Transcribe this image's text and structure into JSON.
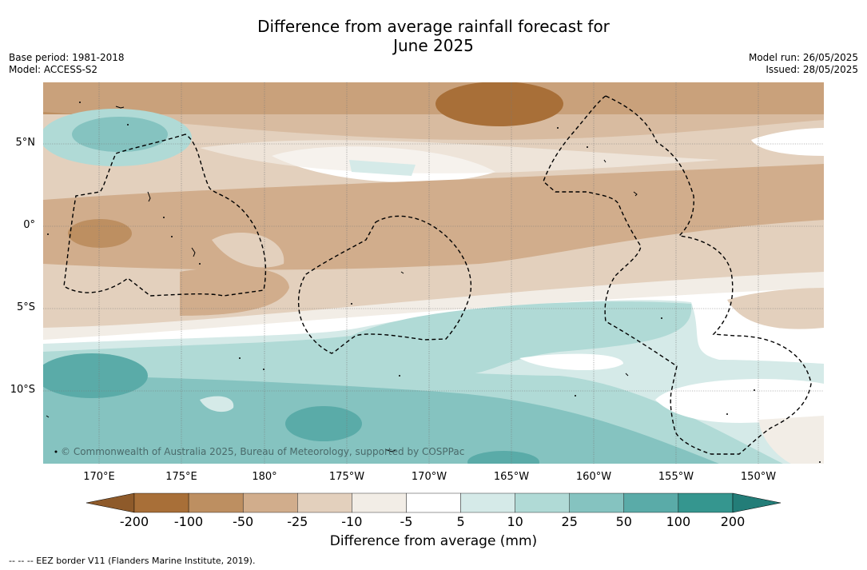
{
  "title": {
    "line1": "Difference from average rainfall forecast for",
    "line2": "June 2025"
  },
  "meta": {
    "base_period": "Base period: 1981-2018",
    "model": "Model: ACCESS-S2",
    "model_run": "Model run: 26/05/2025",
    "issued": "Issued: 28/05/2025"
  },
  "map": {
    "copyright": "© Commonwealth of Australia 2025, Bureau of Meteorology, supported by COSPPac",
    "lat_labels": [
      "5°N",
      "0°",
      "5°S",
      "10°S"
    ],
    "lon_labels": [
      "170°E",
      "175°E",
      "180°",
      "175°W",
      "170°W",
      "165°W",
      "160°W",
      "155°W",
      "150°W"
    ],
    "colors": {
      "n200": "#a86f38",
      "n100": "#bd8f61",
      "n50": "#d1ad8c",
      "n25": "#e3d0bd",
      "n10": "#f2ede6",
      "zero": "#ffffff",
      "p5": "#d5eae8",
      "p10": "#b0dad6",
      "p25": "#85c3c0",
      "p50": "#5aaba8",
      "p100": "#35968f"
    }
  },
  "colorbar": {
    "labels": [
      "-200",
      "-100",
      "-50",
      "-25",
      "-10",
      "-5",
      "5",
      "10",
      "25",
      "50",
      "100",
      "200"
    ],
    "colors": [
      "#a86f38",
      "#bd8f61",
      "#d1ad8c",
      "#e3d0bd",
      "#f2ede6",
      "#ffffff",
      "#d5eae8",
      "#b0dad6",
      "#85c3c0",
      "#5aaba8",
      "#35968f"
    ],
    "end_low": "#8e5a2a",
    "end_high": "#237d78",
    "title": "Difference from average (mm)"
  },
  "footer": "--  --  -- EEZ border V11 (Flanders Marine Institute, 2019)."
}
